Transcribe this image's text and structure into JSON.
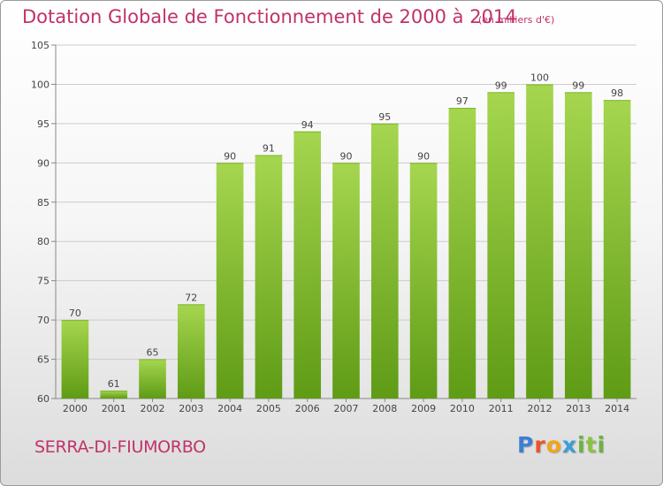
{
  "header": {
    "title": "Dotation Globale de Fonctionnement de 2000 à 2014",
    "subtitle": "(en milliers d'€)"
  },
  "footer": {
    "city": "SERRA-DI-FIUMORBO",
    "logo_letters": [
      "P",
      "r",
      "o",
      "x",
      "i",
      "t",
      "i"
    ]
  },
  "colors": {
    "title": "#c0326a",
    "bar_light": "#a6d64f",
    "bar_dark": "#5f9b15",
    "grid": "#cccccc"
  },
  "chart_data": {
    "type": "bar",
    "title": "Dotation Globale de Fonctionnement de 2000 à 2014",
    "subtitle": "(en milliers d'€)",
    "xlabel": "",
    "ylabel": "",
    "categories": [
      "2000",
      "2001",
      "2002",
      "2003",
      "2004",
      "2005",
      "2006",
      "2007",
      "2008",
      "2009",
      "2010",
      "2011",
      "2012",
      "2013",
      "2014"
    ],
    "values": [
      70,
      61,
      65,
      72,
      90,
      91,
      94,
      90,
      95,
      90,
      97,
      99,
      100,
      99,
      98
    ],
    "ylim": [
      60,
      105
    ],
    "yticks": [
      60,
      65,
      70,
      75,
      80,
      85,
      90,
      95,
      100,
      105
    ],
    "grid": true
  }
}
